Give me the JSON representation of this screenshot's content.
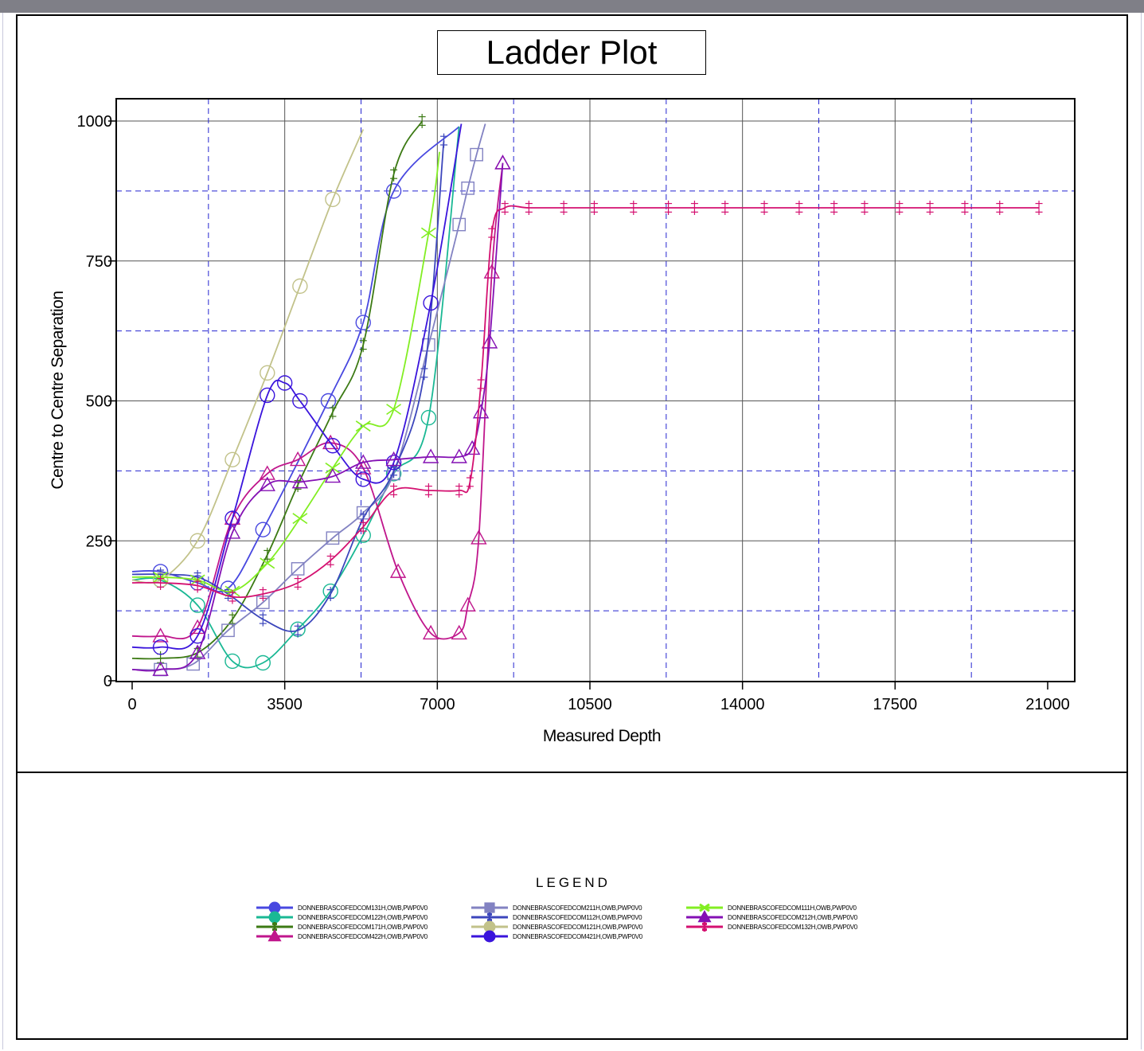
{
  "chart_data": {
    "type": "line",
    "title": "Ladder Plot",
    "xlabel": "Measured Depth",
    "ylabel": "Centre to Centre Separation",
    "xlim": [
      0,
      21000
    ],
    "ylim": [
      0,
      1000
    ],
    "x_ticks": [
      "0",
      "3500",
      "7000",
      "10500",
      "14000",
      "17500",
      "21000"
    ],
    "y_ticks": [
      "0",
      "250",
      "500",
      "750",
      "1000"
    ],
    "x_tick_values": [
      0,
      3500,
      7000,
      10500,
      14000,
      17500,
      21000
    ],
    "y_tick_values": [
      0,
      250,
      500,
      750,
      1000
    ],
    "minor_x_gridlines": [
      1750,
      5250,
      8750,
      12250,
      15750,
      19250
    ],
    "minor_y_gridlines": [
      125,
      375,
      625,
      875
    ],
    "grid": true,
    "legend_title": "LEGEND",
    "legend_position": "bottom-center",
    "series": [
      {
        "name": "DONNEBRASCOFEDCOM131H,OWB,PWP0V0",
        "color": "#4848e0",
        "marker": "circle",
        "x": [
          0,
          650,
          1500,
          2200,
          3000,
          4500,
          5300,
          6000,
          7500
        ],
        "y": [
          195,
          195,
          175,
          165,
          270,
          500,
          640,
          875,
          990
        ]
      },
      {
        "name": "DONNEBRASCOFEDCOM122H,OWB,PWP0V0",
        "color": "#1ab894",
        "marker": "circle",
        "x": [
          0,
          650,
          1500,
          2300,
          3000,
          3800,
          4550,
          5300,
          6000,
          6800,
          7500
        ],
        "y": [
          180,
          180,
          135,
          35,
          32,
          92,
          160,
          260,
          370,
          470,
          990
        ]
      },
      {
        "name": "DONNEBRASCOFEDCOM171H,OWB,PWP0V0",
        "color": "#3c7a14",
        "marker": "plus",
        "x": [
          0,
          650,
          1500,
          2300,
          3100,
          3800,
          4600,
          5300,
          6000,
          6650
        ],
        "y": [
          40,
          40,
          50,
          110,
          225,
          350,
          480,
          600,
          905,
          1000
        ]
      },
      {
        "name": "DONNEBRASCOFEDCOM422H,OWB,PWP0V0",
        "color": "#c0168c",
        "marker": "triangle",
        "x": [
          0,
          650,
          1500,
          2300,
          3100,
          3800,
          4550,
          5300,
          6100,
          6850,
          7500,
          7700,
          7950,
          8250,
          8500
        ],
        "y": [
          80,
          80,
          95,
          290,
          370,
          395,
          425,
          380,
          195,
          85,
          85,
          135,
          255,
          730,
          925
        ]
      },
      {
        "name": "DONNEBRASCOFEDCOM211H,OWB,PWP0V0",
        "color": "#8282c2",
        "marker": "square",
        "x": [
          0,
          650,
          1400,
          2200,
          3000,
          3800,
          4600,
          5300,
          6000,
          6800,
          7500,
          7700,
          7900,
          8100
        ],
        "y": [
          20,
          20,
          30,
          90,
          140,
          200,
          255,
          300,
          370,
          600,
          815,
          880,
          940,
          995
        ]
      },
      {
        "name": "DONNEBRASCOFEDCOM112H,OWB,PWP0V0",
        "color": "#3c46bc",
        "marker": "plus",
        "x": [
          0,
          650,
          1500,
          2200,
          3000,
          3800,
          4550,
          5300,
          6000,
          6700,
          7150
        ],
        "y": [
          190,
          190,
          185,
          155,
          110,
          90,
          155,
          290,
          375,
          550,
          965
        ]
      },
      {
        "name": "DONNEBRASCOFEDCOM121H,OWB,PWP0V0",
        "color": "#c2c28a",
        "marker": "circle",
        "x": [
          0,
          650,
          1500,
          2300,
          3100,
          3850,
          4600,
          5300
        ],
        "y": [
          180,
          180,
          250,
          395,
          550,
          705,
          860,
          985
        ]
      },
      {
        "name": "DONNEBRASCOFEDCOM421H,OWB,PWP0V0",
        "color": "#3a14dc",
        "marker": "circle",
        "x": [
          0,
          650,
          1500,
          2300,
          3100,
          3500,
          3850,
          4600,
          5300,
          6000,
          6850,
          7550
        ],
        "y": [
          60,
          60,
          80,
          290,
          510,
          532,
          500,
          420,
          360,
          390,
          675,
          995
        ]
      },
      {
        "name": "DONNEBRASCOFEDCOM111H,OWB,PWP0V0",
        "color": "#82ee22",
        "marker": "x",
        "x": [
          0,
          650,
          1500,
          2300,
          3100,
          3850,
          4600,
          5300,
          6000,
          6800,
          7050
        ],
        "y": [
          185,
          185,
          180,
          160,
          210,
          290,
          380,
          455,
          485,
          800,
          945
        ]
      },
      {
        "name": "DONNEBRASCOFEDCOM212H,OWB,PWP0V0",
        "color": "#8410b4",
        "marker": "triangle",
        "x": [
          0,
          650,
          1500,
          2300,
          3100,
          3850,
          4600,
          5300,
          6000,
          6850,
          7500,
          7800,
          8000,
          8200,
          8500
        ],
        "y": [
          20,
          20,
          50,
          265,
          350,
          355,
          365,
          390,
          395,
          400,
          400,
          415,
          480,
          605,
          925
        ]
      },
      {
        "name": "DONNEBRASCOFEDCOM132H,OWB,PWP0V0",
        "color": "#d41070",
        "marker": "plus",
        "x": [
          0,
          650,
          1500,
          2300,
          3000,
          3800,
          4550,
          5300,
          6000,
          6800,
          7500,
          7750,
          8000,
          8250,
          8550,
          9100,
          9900,
          10600,
          11500,
          12300,
          12900,
          13600,
          14500,
          15300,
          16100,
          16800,
          17600,
          18300,
          19100,
          19900,
          20800
        ],
        "y": [
          175,
          175,
          170,
          150,
          155,
          175,
          215,
          275,
          340,
          340,
          340,
          355,
          530,
          800,
          845,
          845,
          845,
          845,
          845,
          845,
          845,
          845,
          845,
          845,
          845,
          845,
          845,
          845,
          845,
          845,
          845
        ]
      }
    ]
  }
}
